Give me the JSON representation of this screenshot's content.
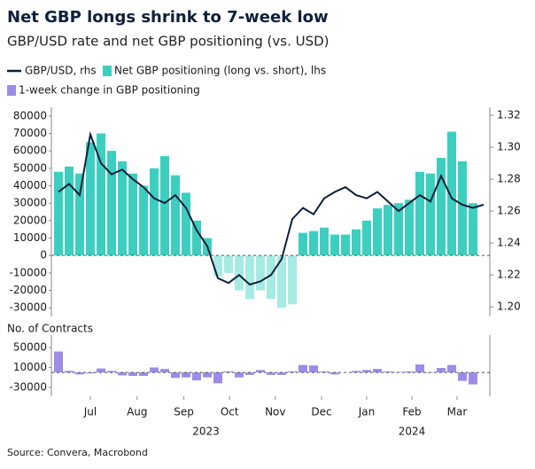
{
  "chart_data": [
    {
      "type": "bar",
      "title": "Net GBP longs shrink to 7-week low",
      "subtitle": "GBP/USD rate and net GBP positioning (vs. USD)",
      "source": "Source: Convera, Macrobond",
      "categories": [
        null,
        null,
        null,
        null,
        null,
        null,
        null,
        null,
        null,
        null,
        null,
        null,
        null,
        null,
        null,
        null,
        null,
        null,
        null,
        null,
        null,
        null,
        null,
        null,
        null,
        null,
        null,
        null,
        null,
        null,
        null,
        null,
        null,
        null,
        null,
        null,
        null,
        null,
        null,
        null,
        null
      ],
      "xticks": [
        {
          "value": 3,
          "label": "Jul"
        },
        {
          "value": 7.4,
          "label": "Aug"
        },
        {
          "value": 11.8,
          "label": "Sep"
        },
        {
          "value": 16.1,
          "label": "Oct"
        },
        {
          "value": 20.4,
          "label": "Nov"
        },
        {
          "value": 24.75,
          "label": "Dec"
        },
        {
          "value": 29,
          "label": "Jan"
        },
        {
          "value": 33.25,
          "label": "Feb"
        },
        {
          "value": 37.5,
          "label": "Mar"
        }
      ],
      "x_group_labels": [
        "2023",
        "2024"
      ],
      "series": [
        {
          "name": "Net GBP positioning (long vs. short), lhs",
          "type": "bar",
          "color": "#3ccfbf",
          "negative_color": "#a6ebe3",
          "values": [
            48000,
            51000,
            47000,
            65000,
            70000,
            60000,
            54000,
            47000,
            40000,
            50000,
            57000,
            46000,
            36000,
            20000,
            10000,
            -12000,
            -10000,
            -20000,
            -25000,
            -20000,
            -25000,
            -30000,
            -28000,
            13000,
            14000,
            16000,
            12000,
            12000,
            15000,
            20000,
            27000,
            29000,
            30000,
            32000,
            48000,
            47000,
            56000,
            71000,
            54000,
            30000,
            null
          ]
        },
        {
          "name": "GBP/USD, rhs",
          "type": "line",
          "axis": "y2",
          "color": "#0d1f3c",
          "values": [
            1.272,
            1.277,
            1.27,
            1.308,
            1.29,
            1.283,
            1.286,
            1.28,
            1.275,
            1.268,
            1.265,
            1.27,
            1.262,
            1.248,
            1.238,
            1.218,
            1.215,
            1.22,
            1.214,
            1.216,
            1.22,
            1.23,
            1.255,
            1.262,
            1.258,
            1.268,
            1.272,
            1.275,
            1.27,
            1.268,
            1.272,
            1.266,
            1.26,
            1.265,
            1.27,
            1.266,
            1.282,
            1.268,
            1.264,
            1.262,
            1.264
          ]
        }
      ],
      "ylim": [
        -35000,
        85000
      ],
      "yticks": [
        -30000,
        -20000,
        -10000,
        0,
        10000,
        20000,
        30000,
        40000,
        50000,
        60000,
        70000,
        80000
      ],
      "y2lim": [
        1.194,
        1.325
      ],
      "y2ticks": [
        {
          "value": 1.2,
          "label": "1.20"
        },
        1.22,
        1.24,
        1.26,
        1.28,
        {
          "value": 1.3,
          "label": "1.30"
        },
        1.32
      ],
      "zero_line": true
    },
    {
      "type": "bar",
      "axis_label": "No. of Contracts",
      "series": [
        {
          "name": "1-week change in GBP positioning",
          "color": "#9c8ce8",
          "values": [
            42000,
            3000,
            -4000,
            -2000,
            8000,
            3000,
            -6000,
            -7000,
            -7000,
            10000,
            7000,
            -11000,
            -10000,
            -16000,
            -10000,
            -22000,
            2000,
            -10000,
            -5000,
            5000,
            -5000,
            -5000,
            2000,
            15000,
            14000,
            2000,
            -4000,
            0,
            3000,
            5000,
            7000,
            2000,
            1000,
            2000,
            16000,
            -1000,
            9000,
            15000,
            -17000,
            -24000,
            null
          ]
        }
      ],
      "ylim": [
        -48000,
        75000
      ],
      "yticks": [
        -30000,
        10000,
        50000
      ],
      "zero_line": true
    }
  ]
}
